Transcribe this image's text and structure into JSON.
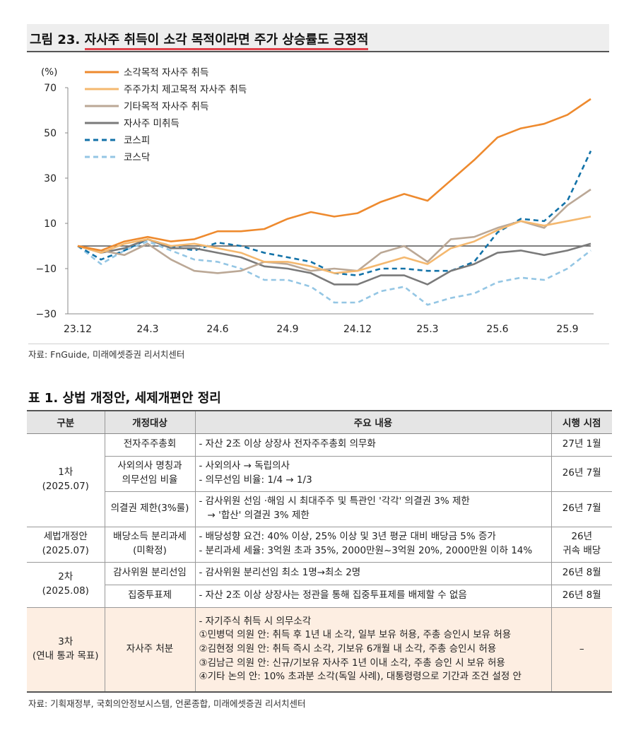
{
  "figure": {
    "number_label": "그림 23.",
    "title": "자사주 취득이 소각 목적이라면 주가 상승률도 긍정적",
    "source": "자료: FnGuide, 미래에셋증권 리서치센터"
  },
  "chart_data": {
    "type": "line",
    "title": "자사주 취득이 소각 목적이라면 주가 상승률도 긍정적",
    "ylabel": "(%)",
    "xlabel": "",
    "ylim": [
      -30,
      70
    ],
    "yticks": [
      70,
      50,
      30,
      10,
      -10,
      -30
    ],
    "ytick_labels": [
      "70",
      "50",
      "30",
      "10",
      "−10",
      "−30"
    ],
    "xtick_labels": [
      "23.12",
      "24.3",
      "24.6",
      "24.9",
      "24.12",
      "25.3",
      "25.6",
      "25.9"
    ],
    "xtick_index": [
      0,
      3,
      6,
      9,
      12,
      15,
      18,
      21
    ],
    "n_points": 23,
    "legend_position": "top-left",
    "series": [
      {
        "name": "소각목적 자사주 취득",
        "color": "#ee8a2e",
        "dash": "solid",
        "values": [
          0,
          -2,
          2,
          4,
          2,
          3,
          6.5,
          6.5,
          7.5,
          12,
          15,
          13,
          14.5,
          19.5,
          23,
          20,
          29,
          38,
          48,
          52,
          54,
          58,
          65
        ]
      },
      {
        "name": "주주가치 제고목적 자사주 취득",
        "color": "#f4b86f",
        "dash": "solid",
        "values": [
          0,
          -3,
          1,
          3,
          0,
          1,
          -1,
          -3,
          -7,
          -7,
          -9,
          -12,
          -11,
          -8,
          -5,
          -8,
          -1,
          2,
          7,
          11,
          9,
          11,
          13
        ]
      },
      {
        "name": "기타목적 자사주 취득",
        "color": "#bba896",
        "dash": "solid",
        "values": [
          0,
          -2,
          -4,
          1,
          -6,
          -11,
          -12,
          -11,
          -7,
          -8,
          -11,
          -10,
          -11,
          -3,
          0,
          -7,
          3,
          4,
          8,
          11,
          8,
          18,
          25
        ]
      },
      {
        "name": "자사주 미취득",
        "color": "#7a7a7a",
        "dash": "solid",
        "values": [
          0,
          -3,
          -1,
          3,
          -1,
          -1,
          -3,
          -5,
          -9,
          -10,
          -12,
          -17,
          -17,
          -13,
          -13,
          -17,
          -11,
          -8,
          -3,
          -2,
          -4,
          -2,
          1
        ]
      },
      {
        "name": "코스피",
        "color": "#1272a8",
        "dash": "dashed",
        "values": [
          0,
          -6,
          -2,
          3,
          0,
          -2,
          1.5,
          0,
          -3,
          -5,
          -7,
          -12,
          -13,
          -10,
          -10,
          -11,
          -11,
          -7,
          6,
          12,
          11,
          20,
          42
        ]
      },
      {
        "name": "코스닥",
        "color": "#94c6e4",
        "dash": "dashed",
        "values": [
          0,
          -8,
          -2,
          2,
          -2,
          -6,
          -7,
          -10,
          -15,
          -15,
          -18,
          -25,
          -25,
          -20,
          -18,
          -26,
          -23,
          -21,
          -16,
          -14,
          -15,
          -10,
          -2
        ]
      }
    ]
  },
  "table": {
    "title": "표 1. 상법 개정안, 세제개편안 정리",
    "headers": [
      "구분",
      "개정대상",
      "주요 내용",
      "시행 시점"
    ],
    "rows": [
      {
        "group_line1": "1차",
        "group_line2": "(2025.07)",
        "r1_target": "전자주주총회",
        "r1_lines": [
          "- 자산 2조 이상 상장사 전자주주총회 의무화"
        ],
        "r1_date": "27년 1월",
        "r2_target_line1": "사외의사 명칭과",
        "r2_target_line2": "의무선임 비율",
        "r2_lines": [
          "- 사외의사 → 독립의사",
          "- 의무선임 비율: 1/4 → 1/3"
        ],
        "r2_date": "26년 7월",
        "r3_target": "의결권 제한(3%룰)",
        "r3_lines": [
          "- 감사위원 선임 ·해임 시 최대주주 및 특관인 '각각' 의결권 3% 제한",
          "→ '합산' 의결권 3% 제한"
        ],
        "r3_date": "26년 7월"
      },
      {
        "group_line1": "세법개정안",
        "group_line2": "(2025.07)",
        "target_line1": "배당소득 분리과세",
        "target_line2": "(미확정)",
        "lines": [
          "- 배당성향 요건: 40% 이상, 25% 이상 및 3년 평균 대비 배당금 5% 증가",
          "- 분리과세 세율: 3억원 초과 35%, 2000만원~3억원 20%, 2000만원 이하 14%"
        ],
        "date_line1": "26년",
        "date_line2": "귀속 배당"
      },
      {
        "group_line1": "2차",
        "group_line2": "(2025.08)",
        "r1_target": "감사위원 분리선임",
        "r1_lines": [
          "- 감사위원 분리선임 최소 1명→최소 2명"
        ],
        "r1_date": "26년 8월",
        "r2_target": "집중투표제",
        "r2_lines": [
          "- 자산 2조 이상 상장사는 정관을 통해 집중투표제를 배제할 수 없음"
        ],
        "r2_date": "26년 8월"
      },
      {
        "group_line1": "3차",
        "group_line2": "(연내 통과 목표)",
        "target": "자사주 처분",
        "lines": [
          "- 자기주식 취득 시 의무소각",
          "①민병덕 의원 안: 취득 후 1년 내 소각, 일부 보유 허용, 주총 승인시 보유 허용",
          "②김현정 의원 안: 취득 즉시 소각, 기보유 6개월 내 소각, 주총 승인시 허용",
          "③김남근 의원 안: 신규/기보유 자사주 1년 이내 소각, 주총 승인 시 보유 허용",
          "④기타 논의 안: 10% 초과분 소각(독일 사례), 대통령령으로 기간과 조건 설정 안"
        ],
        "date": "–"
      }
    ],
    "source": "자료: 기획재정부, 국회의안정보시스템, 언론종합, 미래에셋증권 리서치센터"
  }
}
